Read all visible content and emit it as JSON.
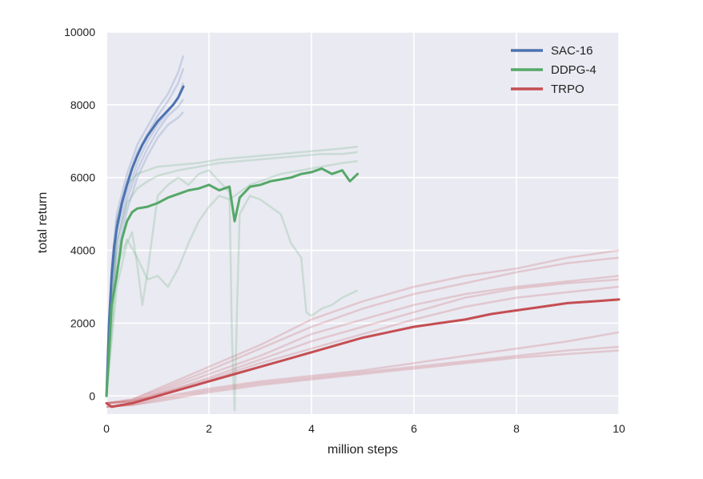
{
  "chart_data": {
    "type": "line",
    "title": "",
    "xlabel": "million steps",
    "ylabel": "total return",
    "xlim": [
      0,
      10
    ],
    "ylim": [
      -500,
      10000
    ],
    "x_ticks": [
      0,
      2,
      4,
      6,
      8,
      10
    ],
    "y_ticks": [
      0,
      2000,
      4000,
      6000,
      8000,
      10000
    ],
    "x_tick_labels": [
      "0",
      "2",
      "4",
      "6",
      "8",
      "10"
    ],
    "y_tick_labels": [
      "0",
      "2000",
      "4000",
      "6000",
      "8000",
      "10000"
    ],
    "grid": true,
    "background": "#eaeaf2",
    "legend_position": "top-right",
    "series": [
      {
        "name": "SAC-16",
        "color": "#4c72b0",
        "x": [
          0,
          0.05,
          0.1,
          0.15,
          0.2,
          0.3,
          0.4,
          0.5,
          0.6,
          0.7,
          0.8,
          0.9,
          1.0,
          1.1,
          1.2,
          1.3,
          1.4,
          1.5
        ],
        "y": [
          0,
          2000,
          3300,
          4100,
          4600,
          5300,
          5800,
          6250,
          6600,
          6900,
          7150,
          7350,
          7550,
          7700,
          7850,
          8000,
          8200,
          8500
        ],
        "runs": [
          {
            "x": [
              0,
              0.1,
              0.2,
              0.4,
              0.6,
              0.8,
              1.0,
              1.2,
              1.4,
              1.5
            ],
            "y": [
              0,
              3600,
              5000,
              6100,
              6900,
              7400,
              7900,
              8300,
              8900,
              9350
            ]
          },
          {
            "x": [
              0,
              0.1,
              0.2,
              0.4,
              0.6,
              0.8,
              1.0,
              1.2,
              1.4,
              1.5
            ],
            "y": [
              0,
              3400,
              4800,
              5900,
              6700,
              7200,
              7700,
              8100,
              8600,
              9000
            ]
          },
          {
            "x": [
              0,
              0.1,
              0.2,
              0.4,
              0.6,
              0.8,
              1.0,
              1.2,
              1.4,
              1.5
            ],
            "y": [
              0,
              3100,
              4500,
              5600,
              6400,
              7000,
              7450,
              7800,
              8200,
              8600
            ]
          },
          {
            "x": [
              0,
              0.1,
              0.2,
              0.4,
              0.6,
              0.8,
              1.0,
              1.2,
              1.4,
              1.5
            ],
            "y": [
              0,
              2900,
              4200,
              5400,
              6200,
              6800,
              7300,
              7700,
              7950,
              8150
            ]
          },
          {
            "x": [
              0,
              0.1,
              0.2,
              0.4,
              0.6,
              0.8,
              1.0,
              1.2,
              1.4,
              1.5
            ],
            "y": [
              0,
              2500,
              3900,
              5100,
              6000,
              6600,
              7100,
              7450,
              7650,
              7800
            ]
          }
        ]
      },
      {
        "name": "DDPG-4",
        "color": "#55a868",
        "x": [
          0,
          0.1,
          0.2,
          0.3,
          0.4,
          0.5,
          0.6,
          0.8,
          1.0,
          1.2,
          1.4,
          1.6,
          1.8,
          2.0,
          2.2,
          2.4,
          2.5,
          2.6,
          2.8,
          3.0,
          3.2,
          3.4,
          3.6,
          3.8,
          4.0,
          4.2,
          4.4,
          4.6,
          4.75,
          4.9
        ],
        "y": [
          0,
          2500,
          3300,
          4300,
          4800,
          5050,
          5150,
          5200,
          5300,
          5450,
          5550,
          5650,
          5700,
          5800,
          5650,
          5750,
          4800,
          5450,
          5750,
          5800,
          5900,
          5950,
          6000,
          6100,
          6150,
          6250,
          6100,
          6200,
          5900,
          6100
        ],
        "runs": [
          {
            "x": [
              0,
              0.2,
              0.4,
              0.6,
              0.8,
              1.0,
              1.4,
              1.8,
              2.2,
              2.6,
              3.0,
              3.4,
              3.8,
              4.2,
              4.6,
              4.9
            ],
            "y": [
              0,
              4800,
              5800,
              6100,
              6200,
              6300,
              6350,
              6400,
              6500,
              6550,
              6600,
              6650,
              6700,
              6750,
              6800,
              6850
            ]
          },
          {
            "x": [
              0,
              0.2,
              0.4,
              0.6,
              0.8,
              1.0,
              1.4,
              1.8,
              2.2,
              2.6,
              3.0,
              3.4,
              3.8,
              4.2,
              4.6,
              4.9
            ],
            "y": [
              0,
              4200,
              5300,
              5700,
              5900,
              6050,
              6200,
              6300,
              6400,
              6450,
              6500,
              6550,
              6600,
              6650,
              6650,
              6700
            ]
          },
          {
            "x": [
              0,
              0.2,
              0.4,
              0.6,
              0.8,
              1.0,
              1.2,
              1.4,
              1.6,
              1.8,
              2.0,
              2.2,
              2.4,
              2.6,
              2.8,
              3.0,
              3.2,
              3.4,
              3.6,
              3.8,
              4.0,
              4.2,
              4.4,
              4.6,
              4.9
            ],
            "y": [
              0,
              3500,
              4300,
              3800,
              3200,
              3300,
              3000,
              3500,
              4200,
              4800,
              5200,
              5500,
              5400,
              5600,
              5800,
              5900,
              6000,
              6100,
              6150,
              6200,
              6250,
              6300,
              6350,
              6400,
              6450
            ]
          },
          {
            "x": [
              0,
              0.2,
              0.4,
              0.5,
              0.6,
              0.7,
              0.8,
              1.0,
              1.2,
              1.4,
              1.6,
              1.8,
              2.0,
              2.2,
              2.4,
              2.45,
              2.5,
              2.55,
              2.6,
              2.8,
              3.0,
              3.2,
              3.4,
              3.6,
              3.8,
              3.9,
              4.0,
              4.2,
              4.4,
              4.6,
              4.9
            ],
            "y": [
              0,
              3000,
              4200,
              4500,
              3600,
              2500,
              3400,
              5500,
              5800,
              6000,
              5800,
              6100,
              6200,
              5900,
              5600,
              1500,
              -400,
              2500,
              5000,
              5500,
              5400,
              5200,
              5000,
              4200,
              3800,
              2300,
              2200,
              2400,
              2500,
              2700,
              2900
            ]
          }
        ]
      },
      {
        "name": "TRPO",
        "color": "#c44e52",
        "x": [
          0,
          0.1,
          0.5,
          1.0,
          1.5,
          2.0,
          2.5,
          3.0,
          3.5,
          4.0,
          4.5,
          5.0,
          5.5,
          6.0,
          6.5,
          7.0,
          7.5,
          8.0,
          8.5,
          9.0,
          9.5,
          10.0
        ],
        "y": [
          -200,
          -300,
          -200,
          0,
          200,
          400,
          600,
          800,
          1000,
          1200,
          1400,
          1600,
          1750,
          1900,
          2000,
          2100,
          2250,
          2350,
          2450,
          2550,
          2600,
          2650
        ],
        "runs": [
          {
            "x": [
              0,
              0.5,
              1,
              2,
              3,
              4,
              5,
              6,
              7,
              8,
              9,
              10
            ],
            "y": [
              -200,
              -100,
              200,
              800,
              1400,
              2100,
              2600,
              3000,
              3300,
              3500,
              3800,
              4000
            ]
          },
          {
            "x": [
              0,
              0.5,
              1,
              2,
              3,
              4,
              5,
              6,
              7,
              8,
              9,
              10
            ],
            "y": [
              -200,
              -100,
              150,
              700,
              1300,
              1900,
              2400,
              2800,
              3100,
              3400,
              3650,
              3800
            ]
          },
          {
            "x": [
              0,
              0.5,
              1,
              2,
              3,
              4,
              5,
              6,
              7,
              8,
              9,
              10
            ],
            "y": [
              -200,
              -150,
              100,
              600,
              1100,
              1700,
              2100,
              2500,
              2800,
              3000,
              3150,
              3300
            ]
          },
          {
            "x": [
              0,
              0.5,
              1,
              2,
              3,
              4,
              5,
              6,
              7,
              8,
              9,
              10
            ],
            "y": [
              -200,
              -150,
              50,
              500,
              1000,
              1500,
              1900,
              2300,
              2700,
              2950,
              3100,
              3200
            ]
          },
          {
            "x": [
              0,
              0.5,
              1,
              2,
              3,
              4,
              5,
              6,
              7,
              8,
              9,
              10
            ],
            "y": [
              -200,
              -150,
              50,
              450,
              900,
              1300,
              1700,
              2100,
              2450,
              2700,
              2850,
              3000
            ]
          },
          {
            "x": [
              0,
              0.5,
              1,
              2,
              3,
              4,
              5,
              6,
              7,
              8,
              9,
              10
            ],
            "y": [
              -300,
              -200,
              -50,
              200,
              400,
              550,
              700,
              900,
              1100,
              1300,
              1500,
              1750
            ]
          },
          {
            "x": [
              0,
              0.5,
              1,
              2,
              3,
              4,
              5,
              6,
              7,
              8,
              9,
              10
            ],
            "y": [
              -300,
              -250,
              -100,
              150,
              350,
              500,
              650,
              800,
              950,
              1100,
              1250,
              1350
            ]
          },
          {
            "x": [
              0,
              0.5,
              1,
              2,
              3,
              4,
              5,
              6,
              7,
              8,
              9,
              10
            ],
            "y": [
              -300,
              -250,
              -150,
              100,
              300,
              450,
              600,
              750,
              900,
              1050,
              1150,
              1250
            ]
          }
        ]
      }
    ]
  }
}
